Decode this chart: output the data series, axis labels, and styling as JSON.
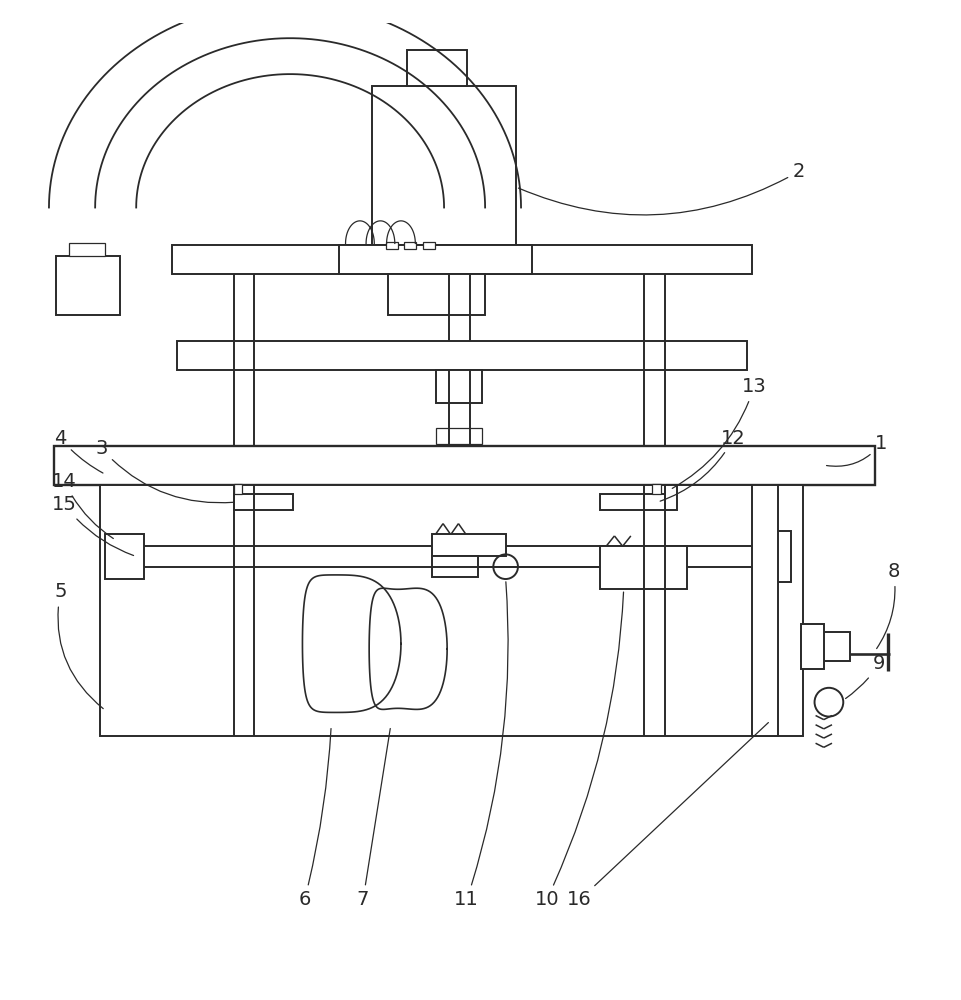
{
  "background_color": "#ffffff",
  "line_color": "#2a2a2a",
  "label_color": "#2a2a2a",
  "label_fontsize": 14,
  "lw": 1.4,
  "tlw": 0.9
}
